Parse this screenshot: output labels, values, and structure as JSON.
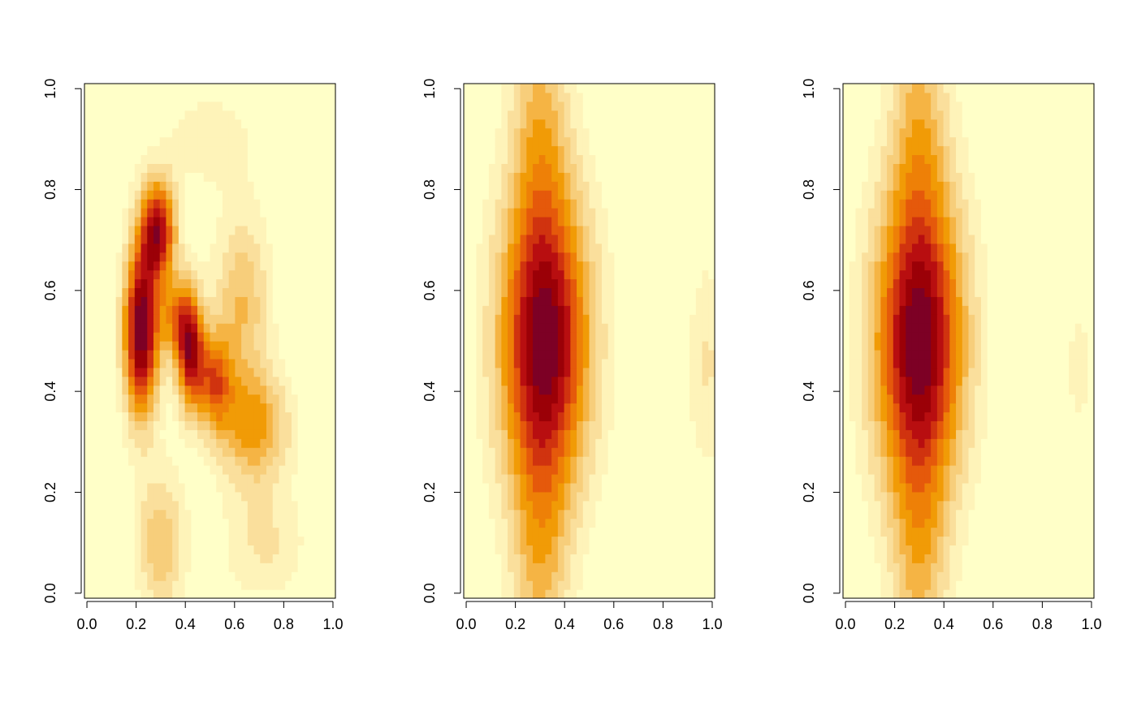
{
  "palette": [
    "#FFFFC8",
    "#FEF3B9",
    "#FADF9C",
    "#F7CE7B",
    "#F5B444",
    "#F19B06",
    "#EE8007",
    "#E5590B",
    "#D0330F",
    "#B80E10",
    "#9B0007",
    "#7D0025"
  ],
  "chart_data": [
    {
      "type": "heatmap",
      "xlim": [
        0,
        1
      ],
      "ylim": [
        0,
        1
      ],
      "xticks": [
        "0.0",
        "0.2",
        "0.4",
        "0.6",
        "0.8",
        "1.0"
      ],
      "yticks": [
        "0.0",
        "0.2",
        "0.4",
        "0.6",
        "0.8",
        "1.0"
      ],
      "xlabel": "",
      "ylabel": "",
      "title": "",
      "grid": false,
      "levels": 12,
      "field": {
        "kind": "sum_of_gaussians",
        "components": [
          {
            "cx": 0.22,
            "cy": 0.52,
            "sx": 0.05,
            "sy": 0.12,
            "w": 1.0
          },
          {
            "cx": 0.29,
            "cy": 0.72,
            "sx": 0.05,
            "sy": 0.07,
            "w": 0.82
          },
          {
            "cx": 0.42,
            "cy": 0.48,
            "sx": 0.04,
            "sy": 0.08,
            "w": 0.8
          },
          {
            "cx": 0.36,
            "cy": 0.55,
            "sx": 0.05,
            "sy": 0.06,
            "w": 0.4
          },
          {
            "cx": 0.52,
            "cy": 0.42,
            "sx": 0.05,
            "sy": 0.07,
            "w": 0.55
          },
          {
            "cx": 0.68,
            "cy": 0.33,
            "sx": 0.1,
            "sy": 0.08,
            "w": 0.45
          },
          {
            "cx": 0.63,
            "cy": 0.58,
            "sx": 0.08,
            "sy": 0.12,
            "w": 0.33
          },
          {
            "cx": 0.3,
            "cy": 0.1,
            "sx": 0.07,
            "sy": 0.1,
            "w": 0.32
          },
          {
            "cx": 0.72,
            "cy": 0.1,
            "sx": 0.12,
            "sy": 0.08,
            "w": 0.18
          },
          {
            "cx": 0.5,
            "cy": 0.9,
            "sx": 0.15,
            "sy": 0.08,
            "w": 0.12
          }
        ]
      }
    },
    {
      "type": "heatmap",
      "xlim": [
        0,
        1
      ],
      "ylim": [
        0,
        1
      ],
      "xticks": [
        "0.0",
        "0.2",
        "0.4",
        "0.6",
        "0.8",
        "1.0"
      ],
      "yticks": [
        "0.0",
        "0.2",
        "0.4",
        "0.6",
        "0.8",
        "1.0"
      ],
      "xlabel": "",
      "ylabel": "",
      "title": "",
      "grid": false,
      "levels": 12,
      "field": {
        "kind": "sum_of_gaussians",
        "components": [
          {
            "cx": 0.32,
            "cy": 0.5,
            "sx": 0.13,
            "sy": 0.22,
            "w": 1.0
          },
          {
            "cx": 0.3,
            "cy": 0.95,
            "sx": 0.08,
            "sy": 0.18,
            "w": 0.3
          },
          {
            "cx": 0.3,
            "cy": 0.05,
            "sx": 0.08,
            "sy": 0.18,
            "w": 0.3
          },
          {
            "cx": 0.98,
            "cy": 0.45,
            "sx": 0.06,
            "sy": 0.15,
            "w": 0.18
          }
        ]
      }
    },
    {
      "type": "heatmap",
      "xlim": [
        0,
        1
      ],
      "ylim": [
        0,
        1
      ],
      "xticks": [
        "0.0",
        "0.2",
        "0.4",
        "0.6",
        "0.8",
        "1.0"
      ],
      "yticks": [
        "0.0",
        "0.2",
        "0.4",
        "0.6",
        "0.8",
        "1.0"
      ],
      "xlabel": "",
      "ylabel": "",
      "title": "",
      "grid": false,
      "levels": 12,
      "field": {
        "kind": "sum_of_gaussians",
        "components": [
          {
            "cx": 0.3,
            "cy": 0.5,
            "sx": 0.13,
            "sy": 0.22,
            "w": 1.0
          },
          {
            "cx": 0.3,
            "cy": 0.95,
            "sx": 0.08,
            "sy": 0.18,
            "w": 0.3
          },
          {
            "cx": 0.3,
            "cy": 0.05,
            "sx": 0.08,
            "sy": 0.18,
            "w": 0.3
          },
          {
            "cx": 0.95,
            "cy": 0.45,
            "sx": 0.07,
            "sy": 0.15,
            "w": 0.1
          }
        ]
      }
    }
  ]
}
